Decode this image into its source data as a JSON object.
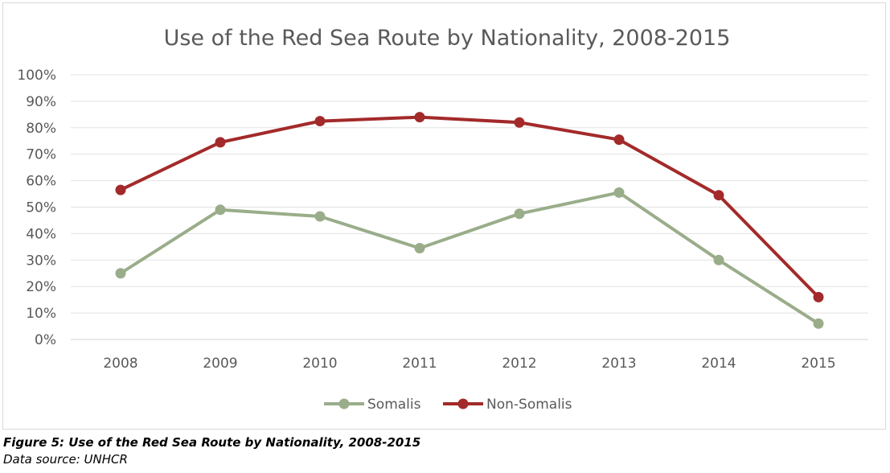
{
  "chart_data": {
    "type": "line",
    "title": "Use of the Red Sea Route by Nationality, 2008-2015",
    "categories": [
      "2008",
      "2009",
      "2010",
      "2011",
      "2012",
      "2013",
      "2014",
      "2015"
    ],
    "ylim": [
      0,
      100
    ],
    "yticks": [
      "0%",
      "10%",
      "20%",
      "30%",
      "40%",
      "50%",
      "60%",
      "70%",
      "80%",
      "90%",
      "100%"
    ],
    "grid": true,
    "legend_position": "bottom",
    "series": [
      {
        "name": "Somalis",
        "color": "#9aad8a",
        "values": [
          25,
          49,
          46.5,
          34.5,
          47.5,
          55.5,
          30,
          6
        ]
      },
      {
        "name": "Non-Somalis",
        "color": "#a32a2a",
        "values": [
          56.5,
          74.5,
          82.5,
          84,
          82,
          75.5,
          54.5,
          16
        ]
      }
    ]
  },
  "caption": {
    "title": "Figure 5: Use of the Red Sea Route by Nationality, 2008-2015",
    "source": "Data source: UNHCR"
  }
}
